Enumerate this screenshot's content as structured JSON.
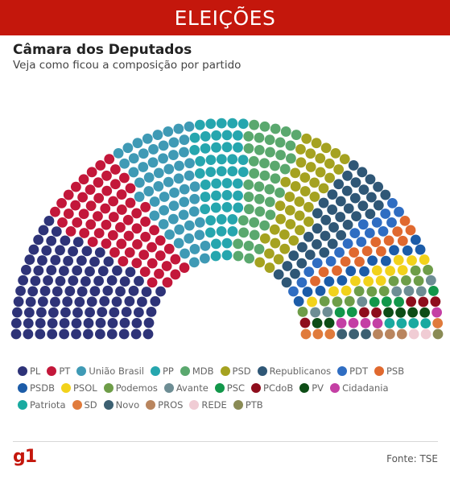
{
  "header": {
    "banner": "ELEIÇÕES"
  },
  "title": "Câmara dos Deputados",
  "subtitle": "Veja como ficou a composição por partido",
  "chart_data": {
    "type": "parliament",
    "total_seats": 513,
    "series": [
      {
        "name": "PL",
        "seats": 99,
        "color": "#2e3378"
      },
      {
        "name": "PT",
        "seats": 68,
        "color": "#c3173a"
      },
      {
        "name": "União Brasil",
        "seats": 59,
        "color": "#3f9ab5"
      },
      {
        "name": "PP",
        "seats": 47,
        "color": "#26a6ae"
      },
      {
        "name": "MDB",
        "seats": 42,
        "color": "#5aa86e"
      },
      {
        "name": "PSD",
        "seats": 42,
        "color": "#a5a220"
      },
      {
        "name": "Republicanos",
        "seats": 41,
        "color": "#2f5776"
      },
      {
        "name": "PDT",
        "seats": 17,
        "color": "#2f6dc2"
      },
      {
        "name": "PSB",
        "seats": 14,
        "color": "#e0692f"
      },
      {
        "name": "PSDB",
        "seats": 13,
        "color": "#1c5ca8"
      },
      {
        "name": "PSOL",
        "seats": 12,
        "color": "#f2d21b"
      },
      {
        "name": "Podemos",
        "seats": 12,
        "color": "#6e9d48"
      },
      {
        "name": "Avante",
        "seats": 7,
        "color": "#6d8d94"
      },
      {
        "name": "PSC",
        "seats": 6,
        "color": "#12974a"
      },
      {
        "name": "PCdoB",
        "seats": 6,
        "color": "#8e0d1c"
      },
      {
        "name": "PV",
        "seats": 6,
        "color": "#0d4d16"
      },
      {
        "name": "Cidadania",
        "seats": 5,
        "color": "#c43fa4"
      },
      {
        "name": "Patriota",
        "seats": 4,
        "color": "#19aaa0"
      },
      {
        "name": "SD",
        "seats": 4,
        "color": "#e07b3c"
      },
      {
        "name": "Novo",
        "seats": 3,
        "color": "#3c6072"
      },
      {
        "name": "PROS",
        "seats": 3,
        "color": "#b9855e"
      },
      {
        "name": "REDE",
        "seats": 2,
        "color": "#f0ccd4"
      },
      {
        "name": "PTB",
        "seats": 1,
        "color": "#8a8b55"
      }
    ]
  },
  "footer": {
    "logo": "g1",
    "source": "Fonte: TSE"
  }
}
